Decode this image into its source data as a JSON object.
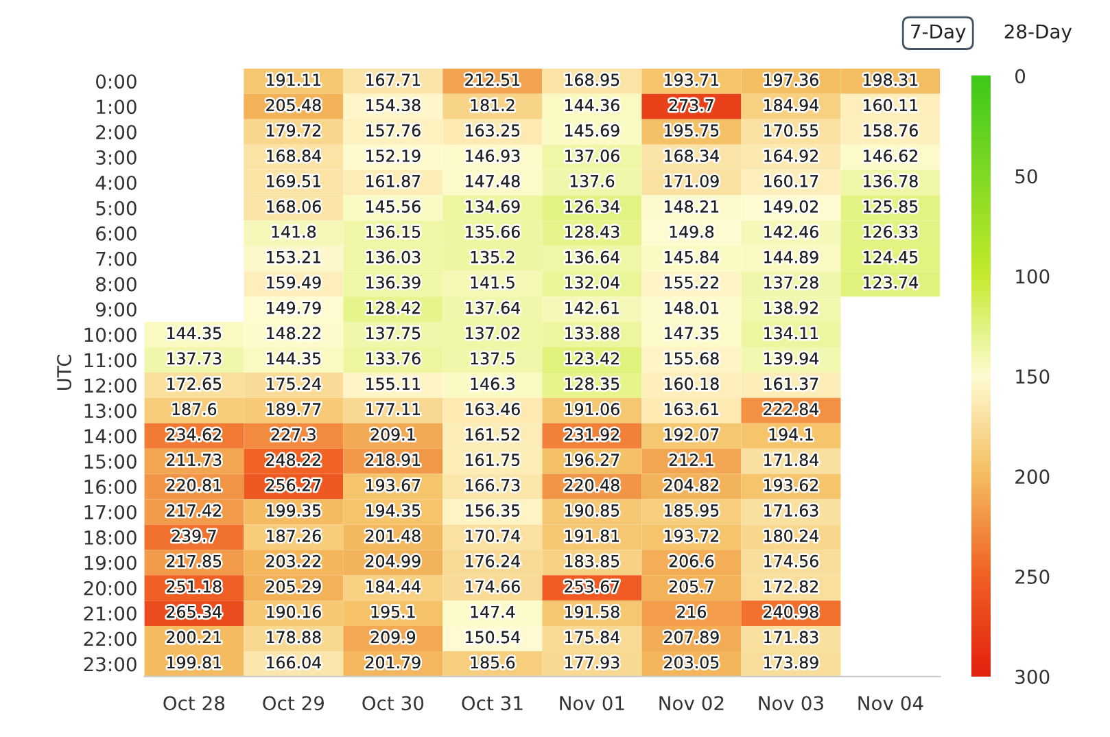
{
  "chart_data": {
    "type": "heatmap",
    "ylabel": "UTC",
    "clim": [
      0,
      300
    ],
    "cticks": [
      0,
      50,
      100,
      150,
      200,
      250,
      300
    ],
    "data_labels": true,
    "annotations": [
      "7-Day",
      "28-Day"
    ],
    "categories": [
      "Oct 28",
      "Oct 29",
      "Oct 30",
      "Oct 31",
      "Nov 01",
      "Nov 02",
      "Nov 03",
      "Nov 04"
    ],
    "y_categories": [
      "0:00",
      "1:00",
      "2:00",
      "3:00",
      "4:00",
      "5:00",
      "6:00",
      "7:00",
      "8:00",
      "9:00",
      "10:00",
      "11:00",
      "12:00",
      "13:00",
      "14:00",
      "15:00",
      "16:00",
      "17:00",
      "18:00",
      "19:00",
      "20:00",
      "21:00",
      "22:00",
      "23:00"
    ],
    "cells": [
      [
        null,
        191.11,
        167.71,
        212.51,
        168.95,
        193.71,
        197.36,
        198.31
      ],
      [
        null,
        205.48,
        154.38,
        181.2,
        144.36,
        273.7,
        184.94,
        160.11
      ],
      [
        null,
        179.72,
        157.76,
        163.25,
        145.69,
        195.75,
        170.55,
        158.76
      ],
      [
        null,
        168.84,
        152.19,
        146.93,
        137.06,
        168.34,
        164.92,
        146.62
      ],
      [
        null,
        169.51,
        161.87,
        147.48,
        137.6,
        171.09,
        160.17,
        136.78
      ],
      [
        null,
        168.06,
        145.56,
        134.69,
        126.34,
        148.21,
        149.02,
        125.85
      ],
      [
        null,
        141.8,
        136.15,
        135.66,
        128.43,
        149.8,
        142.46,
        126.33
      ],
      [
        null,
        153.21,
        136.03,
        135.2,
        136.64,
        145.84,
        144.89,
        124.45
      ],
      [
        null,
        159.49,
        136.39,
        141.5,
        132.04,
        155.22,
        137.28,
        123.74
      ],
      [
        null,
        149.79,
        128.42,
        137.64,
        142.61,
        148.01,
        138.92,
        null
      ],
      [
        144.35,
        148.22,
        137.75,
        137.02,
        133.88,
        147.35,
        134.11,
        null
      ],
      [
        137.73,
        144.35,
        133.76,
        137.5,
        123.42,
        155.68,
        139.94,
        null
      ],
      [
        172.65,
        175.24,
        155.11,
        146.3,
        128.35,
        160.18,
        161.37,
        null
      ],
      [
        187.6,
        189.77,
        177.11,
        163.46,
        191.06,
        163.61,
        222.84,
        null
      ],
      [
        234.62,
        227.3,
        209.1,
        161.52,
        231.92,
        192.07,
        194.1,
        null
      ],
      [
        211.73,
        248.22,
        218.91,
        161.75,
        196.27,
        212.1,
        171.84,
        null
      ],
      [
        220.81,
        256.27,
        193.67,
        166.73,
        220.48,
        204.82,
        193.62,
        null
      ],
      [
        217.42,
        199.35,
        194.35,
        156.35,
        190.85,
        185.95,
        171.63,
        null
      ],
      [
        239.7,
        187.26,
        201.48,
        170.74,
        191.81,
        193.72,
        180.24,
        null
      ],
      [
        217.85,
        203.22,
        204.99,
        176.24,
        183.85,
        206.6,
        174.56,
        null
      ],
      [
        251.18,
        205.29,
        184.44,
        174.66,
        253.67,
        205.7,
        172.82,
        null
      ],
      [
        265.34,
        190.16,
        195.1,
        147.4,
        191.58,
        216,
        240.98,
        null
      ],
      [
        200.21,
        178.88,
        209.9,
        150.54,
        175.84,
        207.89,
        171.83,
        null
      ],
      [
        199.81,
        166.04,
        201.79,
        185.6,
        177.93,
        203.05,
        173.89,
        null
      ]
    ]
  }
}
